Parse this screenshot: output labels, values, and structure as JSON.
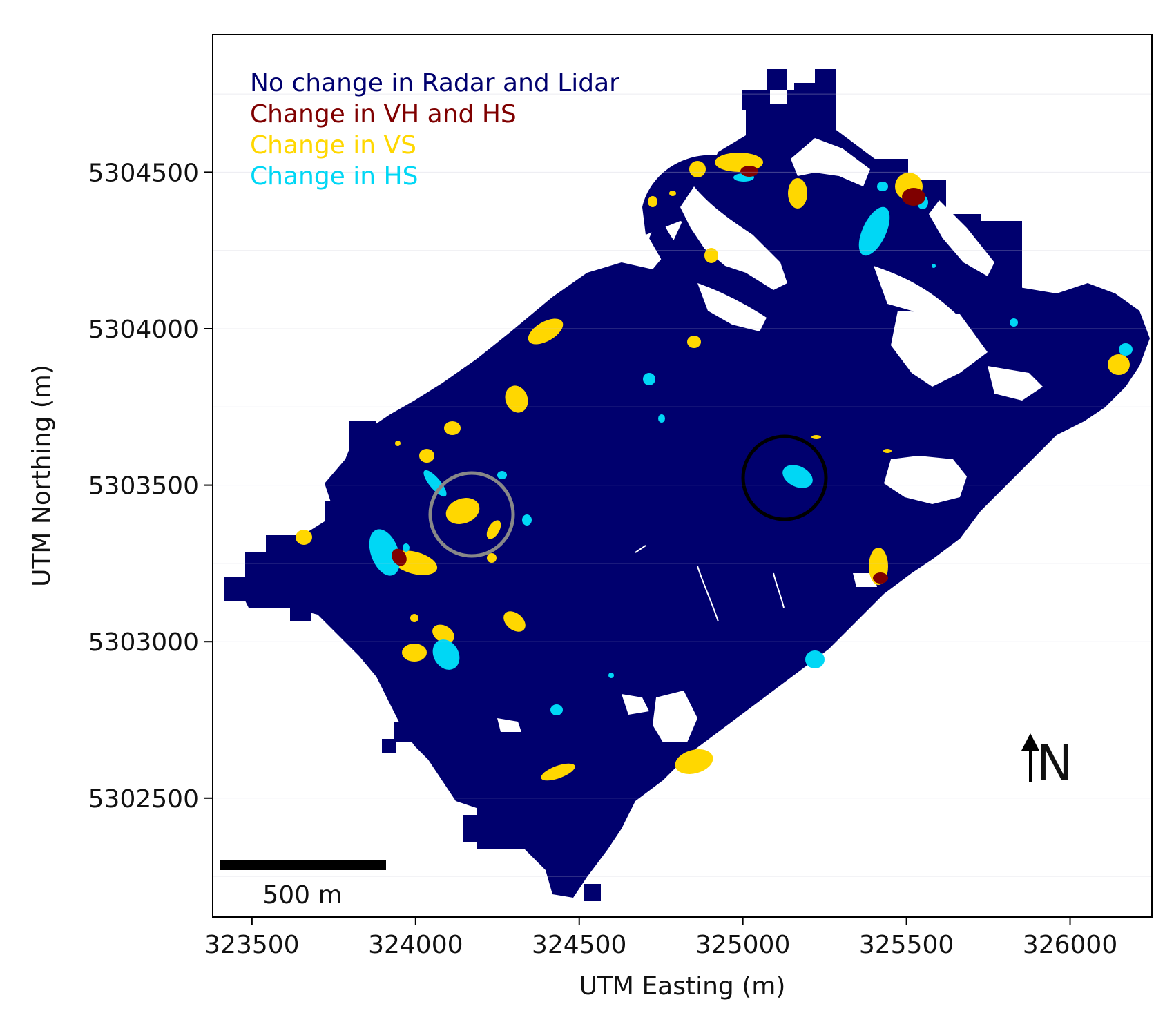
{
  "axes": {
    "xlabel": "UTM Easting (m)",
    "ylabel": "UTM Northing (m)",
    "x_ticks": [
      {
        "value": 323500,
        "label": "323500"
      },
      {
        "value": 324000,
        "label": "324000"
      },
      {
        "value": 324500,
        "label": "324500"
      },
      {
        "value": 325000,
        "label": "325000"
      },
      {
        "value": 325500,
        "label": "325500"
      },
      {
        "value": 326000,
        "label": "326000"
      }
    ],
    "y_ticks": [
      {
        "value": 5304500,
        "label": "5304500"
      },
      {
        "value": 5304000,
        "label": "5304000"
      },
      {
        "value": 5303500,
        "label": "5303500"
      },
      {
        "value": 5303000,
        "label": "5303000"
      },
      {
        "value": 5302500,
        "label": "5302500"
      }
    ],
    "xlim": [
      323380,
      326250
    ],
    "ylim": [
      5302120,
      5304940
    ],
    "grid": "horizontal-faint"
  },
  "legend": {
    "placement": "top-left",
    "entries": [
      {
        "label": "No change in Radar and Lidar",
        "color": "#00006e"
      },
      {
        "label": "Change in VH and HS",
        "color": "#7f0000"
      },
      {
        "label": "Change in VS",
        "color": "#ffd700"
      },
      {
        "label": "Change in HS",
        "color": "#00d7f5"
      }
    ]
  },
  "scale_bar": {
    "label": "500 m",
    "length_m": 500
  },
  "north_arrow": {
    "label": "N"
  },
  "highlight_circles": [
    {
      "name": "gray-circle",
      "color": "#888888",
      "center_easting": 324175,
      "center_northing": 5303355,
      "radius_m": 130
    },
    {
      "name": "black-circle",
      "color": "#000000",
      "center_easting": 325120,
      "center_northing": 5303475,
      "radius_m": 130
    }
  ],
  "colors": {
    "no_change": "#00006e",
    "change_vh_hs": "#7f0000",
    "change_vs": "#ffd700",
    "change_hs": "#00d7f5"
  }
}
